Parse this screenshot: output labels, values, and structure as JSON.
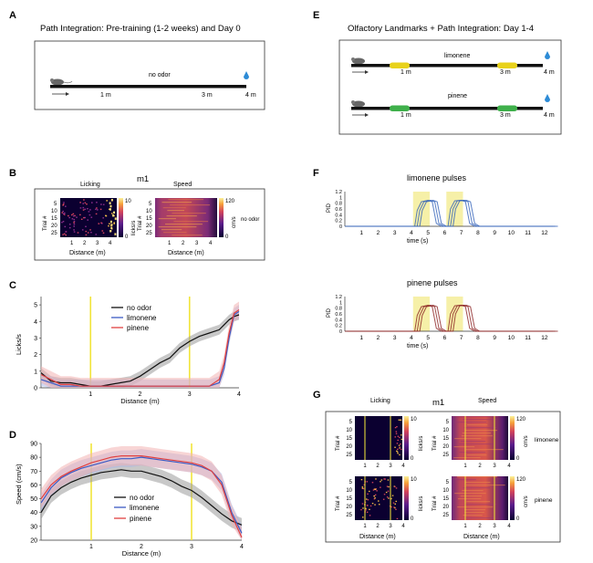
{
  "panels": {
    "A": {
      "letter": "A",
      "title": "Path Integration: Pre-training (1-2 weeks) and Day 0",
      "condition": "no odor",
      "ticks": [
        "1 m",
        "3 m",
        "4 m"
      ]
    },
    "B": {
      "letter": "B",
      "mouse": "m1",
      "licking": "Licking",
      "speed": "Speed",
      "trial_label": "Trial #",
      "trial_ticks": [
        "5",
        "10",
        "15",
        "20",
        "25"
      ],
      "lick_cbar": {
        "label": "licks/s",
        "max": "10",
        "min": "0"
      },
      "speed_cbar": {
        "label": "cm/s",
        "max": "120",
        "min": "0"
      },
      "condition": "no odor",
      "xlabel": "Distance (m)",
      "xticks": [
        "1",
        "2",
        "3",
        "4"
      ]
    },
    "E": {
      "letter": "E",
      "title": "Olfactory Landmarks + Path Integration: Day 1-4",
      "tracks": [
        {
          "odor": "limonene",
          "color": "#e8d21c"
        },
        {
          "odor": "pinene",
          "color": "#3fb04b"
        }
      ],
      "ticks": [
        "1 m",
        "3 m",
        "4 m"
      ]
    },
    "F": {
      "letter": "F",
      "xlabel": "time (s)",
      "ylabel": "PID",
      "yticks": [
        "0",
        "0.2",
        "0.4",
        "0.6",
        "0.8",
        "1",
        "1.2"
      ],
      "xticks": [
        "1",
        "2",
        "3",
        "4",
        "5",
        "6",
        "7",
        "8",
        "9",
        "10",
        "11",
        "12"
      ],
      "pulses": [
        {
          "title": "limonene pulses",
          "color": "#2f5fb8"
        },
        {
          "title": "pinene pulses",
          "color": "#8a1f1f"
        }
      ]
    },
    "C": {
      "letter": "C"
    },
    "D": {
      "letter": "D"
    },
    "G": {
      "letter": "G",
      "mouse": "m1",
      "licking": "Licking",
      "speed": "Speed",
      "trial_label": "Trial #",
      "trial_ticks": [
        "5",
        "10",
        "15",
        "20",
        "25"
      ],
      "rows": [
        "limonene",
        "pinene"
      ],
      "lick_cbar": {
        "label": "licks/s",
        "max": "10",
        "min": "0"
      },
      "speed_cbar": {
        "label": "cm/s",
        "max": "120",
        "min": "0"
      },
      "xlabel": "Distance (m)",
      "xticks": [
        "1",
        "2",
        "3",
        "4"
      ]
    }
  },
  "chart_data": [
    {
      "type": "line",
      "panel": "C",
      "title": "",
      "xlabel": "Distance (m)",
      "ylabel": "Licks/s",
      "xlim": [
        0,
        4
      ],
      "ylim": [
        0,
        5.5
      ],
      "xticks": [
        1,
        2,
        3,
        4
      ],
      "yticks": [
        0,
        1,
        2,
        3,
        4,
        5
      ],
      "landmarks": [
        1,
        3
      ],
      "legend_position": "top-right",
      "x": [
        0,
        0.2,
        0.4,
        0.6,
        0.8,
        1,
        1.2,
        1.4,
        1.6,
        1.8,
        2,
        2.2,
        2.4,
        2.6,
        2.8,
        3,
        3.2,
        3.4,
        3.6,
        3.7,
        3.8,
        3.9,
        4
      ],
      "series": [
        {
          "name": "no odor",
          "color": "#111111",
          "band": "#9a9a9a",
          "values": [
            0.9,
            0.4,
            0.3,
            0.3,
            0.2,
            0.1,
            0.1,
            0.2,
            0.3,
            0.4,
            0.7,
            1.1,
            1.5,
            1.8,
            2.4,
            2.8,
            3.1,
            3.3,
            3.5,
            3.8,
            4.1,
            4.3,
            4.4
          ]
        },
        {
          "name": "limonene",
          "color": "#3b5bc4",
          "band": "#aab8e8",
          "values": [
            0.5,
            0.3,
            0.1,
            0.1,
            0.1,
            0.1,
            0.1,
            0.1,
            0.1,
            0.1,
            0.1,
            0.1,
            0.1,
            0.1,
            0.1,
            0.1,
            0.1,
            0.1,
            0.3,
            1.2,
            3.0,
            4.4,
            4.6
          ]
        },
        {
          "name": "pinene",
          "color": "#e04040",
          "band": "#f3b3b3",
          "values": [
            0.8,
            0.5,
            0.2,
            0.2,
            0.1,
            0.1,
            0.1,
            0.1,
            0.1,
            0.1,
            0.1,
            0.1,
            0.1,
            0.1,
            0.1,
            0.1,
            0.1,
            0.1,
            0.5,
            1.5,
            3.3,
            4.5,
            4.7
          ]
        }
      ]
    },
    {
      "type": "line",
      "panel": "D",
      "title": "",
      "xlabel": "Distance (m)",
      "ylabel": "Speed (cm/s)",
      "xlim": [
        0,
        4
      ],
      "ylim": [
        20,
        90
      ],
      "xticks": [
        1,
        2,
        3,
        4
      ],
      "yticks": [
        20,
        30,
        40,
        50,
        60,
        70,
        80,
        90
      ],
      "landmarks": [
        1,
        3
      ],
      "legend_position": "bottom-center",
      "x": [
        0,
        0.2,
        0.4,
        0.6,
        0.8,
        1,
        1.2,
        1.4,
        1.6,
        1.8,
        2,
        2.2,
        2.4,
        2.6,
        2.8,
        3,
        3.2,
        3.4,
        3.6,
        3.8,
        4
      ],
      "series": [
        {
          "name": "no odor",
          "color": "#111111",
          "band": "#9a9a9a",
          "values": [
            40,
            52,
            58,
            62,
            65,
            67,
            69,
            70,
            71,
            70,
            70,
            68,
            66,
            63,
            59,
            56,
            51,
            45,
            39,
            34,
            31
          ]
        },
        {
          "name": "limonene",
          "color": "#3b5bc4",
          "band": "#aab8e8",
          "values": [
            47,
            58,
            65,
            69,
            72,
            74,
            76,
            78,
            79,
            79,
            80,
            79,
            78,
            77,
            76,
            75,
            73,
            70,
            62,
            40,
            25
          ]
        },
        {
          "name": "pinene",
          "color": "#e04040",
          "band": "#f3b3b3",
          "values": [
            50,
            60,
            66,
            70,
            73,
            76,
            78,
            80,
            81,
            81,
            81,
            80,
            79,
            78,
            77,
            76,
            74,
            70,
            60,
            38,
            22
          ]
        }
      ]
    }
  ]
}
